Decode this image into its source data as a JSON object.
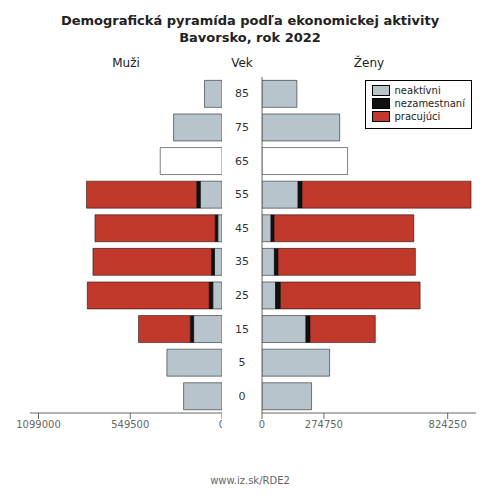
{
  "chart_data": [
    {
      "type": "bar",
      "orientation": "horizontal",
      "stacked": true,
      "title": "Demografická pyramída podľa ekonomickej aktivity\nBavorsko, rok 2022",
      "xlabel": "Muži",
      "ylabel": "Vek",
      "annotations": [
        "www.iz.sk/RDE2"
      ],
      "categories": [
        0,
        5,
        15,
        25,
        35,
        45,
        55,
        65,
        75,
        85
      ],
      "xlim": [
        1150000,
        0
      ],
      "xticks": [
        1099000,
        549500,
        0
      ],
      "series": [
        {
          "name": "neaktívni",
          "color": "#b8c4cc",
          "colors": [
            "#b8c4cc",
            "#b8c4cc",
            "#b8c4cc",
            "#b8c4cc",
            "#b8c4cc",
            "#b8c4cc",
            "#b8c4cc",
            "#ffffff",
            "#b8c4cc",
            "#b8c4cc"
          ],
          "values": [
            230000,
            330000,
            170000,
            55000,
            45000,
            25000,
            130000,
            370000,
            290000,
            105000
          ]
        },
        {
          "name": "nezamestnaní",
          "color": "#111111",
          "values": [
            0,
            0,
            20000,
            22000,
            18000,
            16000,
            22000,
            0,
            0,
            0
          ]
        },
        {
          "name": "pracujúci",
          "color": "#c0392b",
          "values": [
            0,
            0,
            310000,
            730000,
            710000,
            720000,
            660000,
            0,
            0,
            0
          ]
        }
      ]
    },
    {
      "type": "bar",
      "orientation": "horizontal",
      "stacked": true,
      "xlabel": "Ženy",
      "legend": "upper right",
      "categories": [
        0,
        5,
        15,
        25,
        35,
        45,
        55,
        65,
        75,
        85
      ],
      "xlim": [
        0,
        950000
      ],
      "xticks": [
        0,
        274750,
        824250
      ],
      "series": [
        {
          "name": "neaktívni",
          "color": "#b8c4cc",
          "colors": [
            "#b8c4cc",
            "#b8c4cc",
            "#b8c4cc",
            "#b8c4cc",
            "#b8c4cc",
            "#b8c4cc",
            "#b8c4cc",
            "#ffffff",
            "#b8c4cc",
            "#b8c4cc"
          ],
          "values": [
            220000,
            300000,
            195000,
            60000,
            55000,
            40000,
            160000,
            380000,
            345000,
            155000
          ]
        },
        {
          "name": "nezamestnaní",
          "color": "#111111",
          "values": [
            0,
            0,
            18000,
            22000,
            16000,
            14000,
            18000,
            0,
            0,
            0
          ]
        },
        {
          "name": "pracujúci",
          "color": "#c0392b",
          "values": [
            0,
            0,
            290000,
            620000,
            610000,
            620000,
            750000,
            0,
            0,
            0
          ]
        }
      ]
    }
  ]
}
